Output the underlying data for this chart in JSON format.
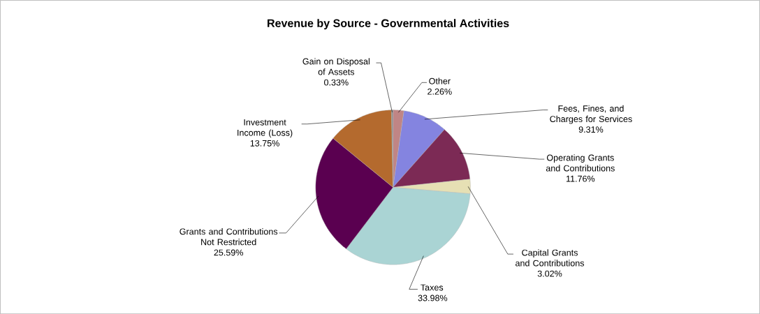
{
  "chart_data": {
    "type": "pie",
    "title": "Revenue  by Source - Governmental Activities",
    "categories": [
      "Other",
      "Fees, Fines, and Charges for Services",
      "Operating Grants and Contributions",
      "Capital Grants and Contributions",
      "Taxes",
      "Grants and Contributions Not Restricted",
      "Investment Income (Loss)",
      "Gain on Disposal of Assets"
    ],
    "values": [
      2.26,
      9.31,
      11.76,
      3.02,
      33.98,
      25.59,
      13.75,
      0.33
    ],
    "value_labels": [
      "2.26%",
      "9.31%",
      "11.76%",
      "3.02%",
      "33.98%",
      "25.59%",
      "13.75%",
      "0.33%"
    ],
    "colors": [
      "#c08585",
      "#8484e0",
      "#7c2a55",
      "#e6e0b4",
      "#aad4d4",
      "#5a0050",
      "#b46a2e",
      "#8a8a8a"
    ]
  }
}
